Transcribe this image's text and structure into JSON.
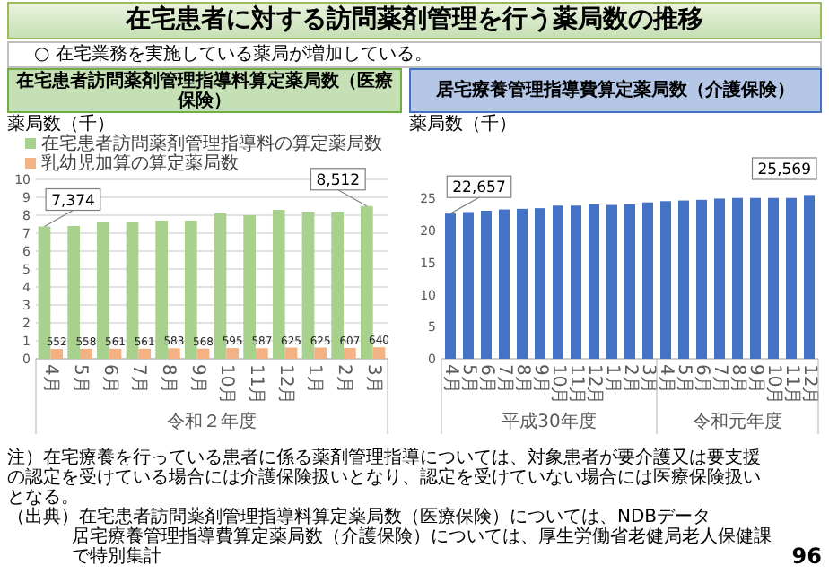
{
  "chart_data": [
    {
      "type": "other",
      "title": "在宅患者に対する訪問薬剤管理を行う薬局数の推移",
      "subtitle": "○ 在宅業務を実施している薬局が増加している。",
      "annotations": [
        "注）在宅療養を行っている患者に係る薬剤管理指導については、対象患者が要介護又は要支援の認定を受けている場合には介護保険扱いとなり、認定を受けていない場合には医療保険扱いとなる。",
        "（出典）在宅患者訪問薬剤管理指導料算定薬局数（医療保険）については、NDBデータ",
        "居宅療養管理指導費算定薬局数（介護保険）については、厚生労働省老健局老人保健課で特別集計",
        "96"
      ]
    },
    {
      "type": "bar",
      "title": "在宅患者訪問薬剤管理指導料算定薬局数（医療保険）",
      "ylabel": "薬局数（千）",
      "xlabel": "令和２年度",
      "categories": [
        "4月",
        "5月",
        "6月",
        "7月",
        "8月",
        "9月",
        "10月",
        "11月",
        "12月",
        "1月",
        "2月",
        "3月"
      ],
      "ylim": [
        0,
        10
      ],
      "yticks": [
        0,
        1,
        2,
        3,
        4,
        5,
        6,
        7,
        8,
        9,
        10
      ],
      "grid": "y",
      "legend": "top left",
      "annotations": [
        {
          "text": "7,374",
          "x": "4月",
          "y": 7.374
        },
        {
          "text": "8,512",
          "x": "3月",
          "y": 8.512
        },
        {
          "text": "552",
          "x": "4月",
          "y": 0.552
        },
        {
          "text": "558",
          "x": "5月",
          "y": 0.558
        },
        {
          "text": "561",
          "x": "6月",
          "y": 0.561
        },
        {
          "text": "561",
          "x": "7月",
          "y": 0.561
        },
        {
          "text": "583",
          "x": "8月",
          "y": 0.583
        },
        {
          "text": "568",
          "x": "9月",
          "y": 0.568
        },
        {
          "text": "595",
          "x": "10月",
          "y": 0.595
        },
        {
          "text": "587",
          "x": "11月",
          "y": 0.587
        },
        {
          "text": "625",
          "x": "12月",
          "y": 0.625
        },
        {
          "text": "625",
          "x": "1月",
          "y": 0.625
        },
        {
          "text": "607",
          "x": "2月",
          "y": 0.607
        },
        {
          "text": "640",
          "x": "3月",
          "y": 0.64
        }
      ],
      "series": [
        {
          "name": "在宅患者訪問薬剤管理指導料の算定薬局数",
          "color": "#a9d18e",
          "values": [
            7.374,
            7.4,
            7.6,
            7.6,
            7.7,
            7.7,
            8.1,
            8.0,
            8.3,
            8.2,
            8.2,
            8.512
          ]
        },
        {
          "name": "乳幼児加算の算定薬局数",
          "color": "#f4b183",
          "values": [
            0.552,
            0.558,
            0.561,
            0.561,
            0.583,
            0.568,
            0.595,
            0.587,
            0.625,
            0.625,
            0.607,
            0.64
          ]
        }
      ]
    },
    {
      "type": "bar",
      "title": "居宅療養管理指導費算定薬局数（介護保険）",
      "ylabel": "薬局数（千）",
      "categories": [
        "4月",
        "5月",
        "6月",
        "7月",
        "8月",
        "9月",
        "10月",
        "11月",
        "12月",
        "1月",
        "2月",
        "3月",
        "4月",
        "5月",
        "6月",
        "7月",
        "8月",
        "9月",
        "10月",
        "11月",
        "12月"
      ],
      "ylim": [
        0,
        28
      ],
      "yticks": [
        0,
        5,
        10,
        15,
        20,
        25
      ],
      "annotations": [
        "平成30年度",
        "令和元年度",
        {
          "text": "22,657",
          "x": "4月",
          "y": 22.657
        },
        "25,569"
      ],
      "series": [
        {
          "color": "#4472c4",
          "values": [
            22.657,
            22.9,
            23.1,
            23.3,
            23.4,
            23.5,
            23.9,
            23.9,
            24.1,
            24.0,
            24.1,
            24.4,
            24.6,
            24.7,
            24.8,
            25.0,
            25.1,
            25.1,
            25.1,
            25.1,
            25.569
          ]
        }
      ]
    }
  ]
}
